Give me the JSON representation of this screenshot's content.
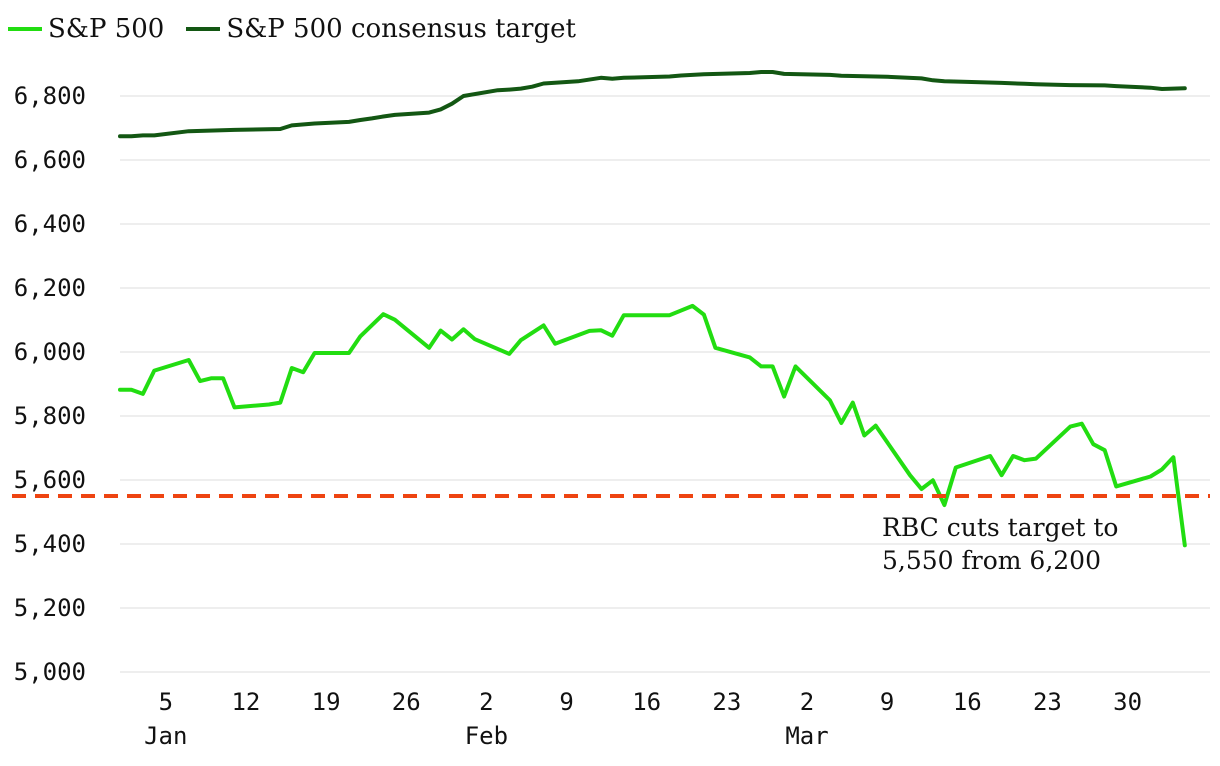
{
  "chart_data": {
    "type": "line",
    "title": "",
    "xlabel": "",
    "ylabel": "",
    "ylim": [
      5000,
      6800
    ],
    "y_ticks": [
      "5,000",
      "5,200",
      "5,400",
      "5,600",
      "5,800",
      "6,000",
      "6,200",
      "6,400",
      "6,600",
      "6,800"
    ],
    "y_tick_values": [
      5000,
      5200,
      5400,
      5600,
      5800,
      6000,
      6200,
      6400,
      6600,
      6800
    ],
    "x_range": [
      0,
      95
    ],
    "x_ticks": [
      {
        "day": 4,
        "label": "5",
        "month": "Jan"
      },
      {
        "day": 11,
        "label": "12"
      },
      {
        "day": 18,
        "label": "19"
      },
      {
        "day": 25,
        "label": "26"
      },
      {
        "day": 32,
        "label": "2",
        "month": "Feb"
      },
      {
        "day": 39,
        "label": "9"
      },
      {
        "day": 46,
        "label": "16"
      },
      {
        "day": 53,
        "label": "23"
      },
      {
        "day": 60,
        "label": "2",
        "month": "Mar"
      },
      {
        "day": 67,
        "label": "9"
      },
      {
        "day": 74,
        "label": "16"
      },
      {
        "day": 81,
        "label": "23"
      },
      {
        "day": 88,
        "label": "30"
      }
    ],
    "series": [
      {
        "name": "S&P 500",
        "color": "#22dd11",
        "points": [
          [
            0,
            5882
          ],
          [
            1,
            5882
          ],
          [
            2,
            5869
          ],
          [
            3,
            5942
          ],
          [
            6,
            5975
          ],
          [
            7,
            5909
          ],
          [
            8,
            5918
          ],
          [
            9,
            5918
          ],
          [
            10,
            5827
          ],
          [
            13,
            5836
          ],
          [
            14,
            5842
          ],
          [
            15,
            5950
          ],
          [
            16,
            5937
          ],
          [
            17,
            5997
          ],
          [
            20,
            5997
          ],
          [
            21,
            6049
          ],
          [
            23,
            6118
          ],
          [
            24,
            6101
          ],
          [
            27,
            6013
          ],
          [
            28,
            6067
          ],
          [
            29,
            6039
          ],
          [
            30,
            6071
          ],
          [
            31,
            6040
          ],
          [
            34,
            5994
          ],
          [
            35,
            6037
          ],
          [
            37,
            6083
          ],
          [
            38,
            6026
          ],
          [
            41,
            6066
          ],
          [
            42,
            6068
          ],
          [
            43,
            6051
          ],
          [
            44,
            6115
          ],
          [
            48,
            6115
          ],
          [
            50,
            6144
          ],
          [
            51,
            6117
          ],
          [
            52,
            6013
          ],
          [
            55,
            5983
          ],
          [
            56,
            5955
          ],
          [
            57,
            5955
          ],
          [
            58,
            5861
          ],
          [
            59,
            5955
          ],
          [
            62,
            5849
          ],
          [
            63,
            5778
          ],
          [
            64,
            5842
          ],
          [
            65,
            5739
          ],
          [
            66,
            5770
          ],
          [
            69,
            5615
          ],
          [
            70,
            5572
          ],
          [
            71,
            5599
          ],
          [
            72,
            5522
          ],
          [
            73,
            5639
          ],
          [
            76,
            5675
          ],
          [
            77,
            5615
          ],
          [
            78,
            5675
          ],
          [
            79,
            5662
          ],
          [
            80,
            5667
          ],
          [
            83,
            5767
          ],
          [
            84,
            5776
          ],
          [
            85,
            5712
          ],
          [
            86,
            5693
          ],
          [
            87,
            5580
          ],
          [
            90,
            5611
          ],
          [
            91,
            5633
          ],
          [
            92,
            5671
          ],
          [
            93,
            5396
          ]
        ]
      },
      {
        "name": "S&P 500 consensus target",
        "color": "#135713",
        "points": [
          [
            0,
            6674
          ],
          [
            1,
            6674
          ],
          [
            2,
            6677
          ],
          [
            3,
            6677
          ],
          [
            6,
            6690
          ],
          [
            10,
            6694
          ],
          [
            14,
            6697
          ],
          [
            15,
            6708
          ],
          [
            17,
            6714
          ],
          [
            20,
            6719
          ],
          [
            21,
            6725
          ],
          [
            22,
            6730
          ],
          [
            23,
            6736
          ],
          [
            24,
            6741
          ],
          [
            27,
            6748
          ],
          [
            28,
            6758
          ],
          [
            29,
            6776
          ],
          [
            30,
            6800
          ],
          [
            33,
            6818
          ],
          [
            34,
            6820
          ],
          [
            35,
            6823
          ],
          [
            36,
            6829
          ],
          [
            37,
            6839
          ],
          [
            40,
            6846
          ],
          [
            42,
            6857
          ],
          [
            43,
            6854
          ],
          [
            44,
            6857
          ],
          [
            48,
            6861
          ],
          [
            49,
            6864
          ],
          [
            51,
            6868
          ],
          [
            55,
            6872
          ],
          [
            56,
            6875
          ],
          [
            57,
            6875
          ],
          [
            58,
            6869
          ],
          [
            62,
            6866
          ],
          [
            63,
            6863
          ],
          [
            67,
            6860
          ],
          [
            70,
            6855
          ],
          [
            71,
            6849
          ],
          [
            72,
            6846
          ],
          [
            74,
            6844
          ],
          [
            77,
            6841
          ],
          [
            79,
            6838
          ],
          [
            80,
            6837
          ],
          [
            83,
            6834
          ],
          [
            86,
            6833
          ],
          [
            87,
            6831
          ],
          [
            90,
            6826
          ],
          [
            91,
            6822
          ],
          [
            93,
            6824
          ]
        ]
      }
    ],
    "reference_line": {
      "value": 5550,
      "color": "#ee4411",
      "style": "dashed"
    },
    "annotation": {
      "line1": "RBC cuts target to",
      "line2": "5,550 from 6,200"
    },
    "legend": {
      "position": "top-left"
    }
  }
}
